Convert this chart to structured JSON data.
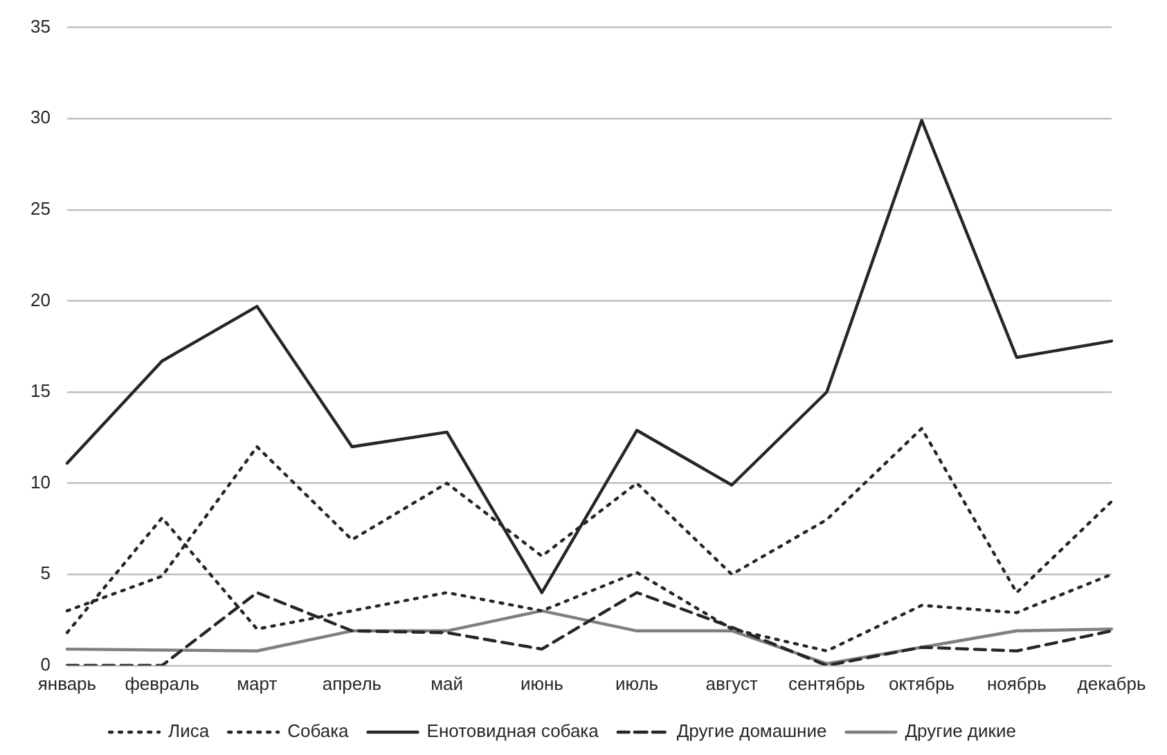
{
  "chart_data": {
    "type": "line",
    "categories": [
      "январь",
      "февраль",
      "март",
      "апрель",
      "май",
      "июнь",
      "июль",
      "август",
      "сентябрь",
      "октябрь",
      "ноябрь",
      "декабрь"
    ],
    "series": [
      {
        "name": "Лиса",
        "color": "#262626",
        "line_style": "dotted",
        "values": [
          3,
          4.9,
          12,
          6.9,
          10,
          6,
          10,
          5,
          8,
          13,
          4,
          9
        ]
      },
      {
        "name": "Собака",
        "color": "#262626",
        "line_style": "dotted",
        "values": [
          1.8,
          8.1,
          2,
          3,
          4,
          3,
          5.1,
          2,
          0.8,
          3.3,
          2.9,
          5
        ]
      },
      {
        "name": "Енотовидная собака",
        "color": "#262626",
        "line_style": "solid",
        "values": [
          11.1,
          16.7,
          19.7,
          12,
          12.8,
          4,
          12.9,
          9.9,
          15,
          29.9,
          16.9,
          17.8
        ]
      },
      {
        "name": "Другие домашние",
        "color": "#262626",
        "line_style": "dashed",
        "values": [
          0,
          0,
          4,
          1.9,
          1.8,
          0.9,
          4,
          2.1,
          0,
          1,
          0.8,
          1.9
        ]
      },
      {
        "name": "Другие дикие",
        "color": "#7f7f7f",
        "line_style": "solid",
        "values": [
          0.9,
          0.85,
          0.8,
          1.9,
          1.9,
          3,
          1.9,
          1.9,
          0.1,
          1,
          1.9,
          2
        ]
      }
    ],
    "ylim": [
      0,
      35
    ],
    "yticks": [
      0,
      5,
      10,
      15,
      20,
      25,
      30,
      35
    ],
    "grid": "y",
    "legend": "bottom",
    "marker": "none"
  }
}
